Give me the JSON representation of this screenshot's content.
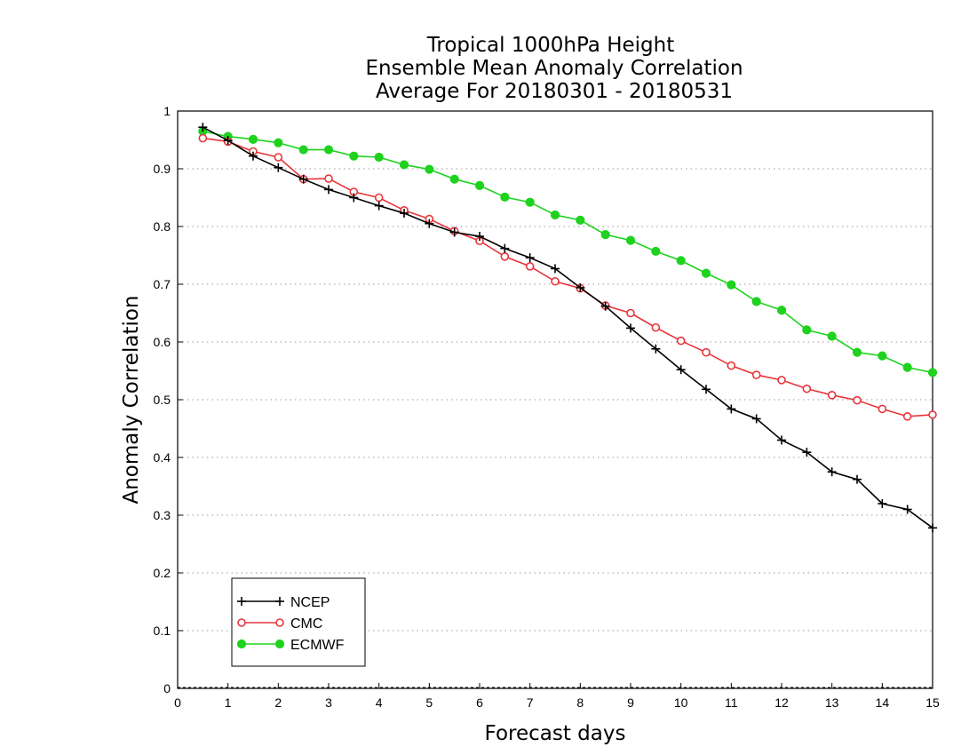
{
  "chart_data": {
    "type": "line",
    "title": [
      "Tropical 1000hPa Height",
      "Ensemble Mean Anomaly Correlation",
      "Average For 20180301 - 20180531"
    ],
    "xlabel": "Forecast days",
    "ylabel": "Anomaly Correlation",
    "xlim": [
      0,
      15
    ],
    "ylim": [
      0,
      1
    ],
    "xticks": [
      "0",
      "1",
      "2",
      "3",
      "4",
      "5",
      "6",
      "7",
      "8",
      "9",
      "10",
      "11",
      "12",
      "13",
      "14",
      "15"
    ],
    "yticks": [
      "0",
      "0.1",
      "0.2",
      "0.3",
      "0.4",
      "0.5",
      "0.6",
      "0.7",
      "0.8",
      "0.9",
      "1"
    ],
    "grid": "horizontal dotted",
    "legend_position": "bottom-left",
    "x": [
      0.5,
      1,
      1.5,
      2,
      2.5,
      3,
      3.5,
      4,
      4.5,
      5,
      5.5,
      6,
      6.5,
      7,
      7.5,
      8,
      8.5,
      9,
      9.5,
      10,
      10.5,
      11,
      11.5,
      12,
      12.5,
      13,
      13.5,
      14,
      14.5,
      15
    ],
    "series": [
      {
        "name": "NCEP",
        "color": "#000000",
        "marker": "plus",
        "values": [
          0.972,
          0.949,
          0.922,
          0.902,
          0.882,
          0.864,
          0.85,
          0.836,
          0.823,
          0.805,
          0.79,
          0.783,
          0.762,
          0.746,
          0.727,
          0.694,
          0.662,
          0.624,
          0.588,
          0.552,
          0.518,
          0.484,
          0.467,
          0.43,
          0.409,
          0.375,
          0.362,
          0.32,
          0.31,
          0.278
        ]
      },
      {
        "name": "CMC",
        "color": "#e8353b",
        "marker": "open-circle",
        "values": [
          0.953,
          0.947,
          0.93,
          0.92,
          0.882,
          0.883,
          0.86,
          0.85,
          0.828,
          0.813,
          0.792,
          0.775,
          0.748,
          0.731,
          0.705,
          0.693,
          0.663,
          0.65,
          0.625,
          0.602,
          0.582,
          0.559,
          0.543,
          0.534,
          0.519,
          0.508,
          0.499,
          0.484,
          0.471,
          0.474
        ]
      },
      {
        "name": "ECMWF",
        "color": "#1ed21e",
        "marker": "filled-circle",
        "values": [
          0.965,
          0.956,
          0.951,
          0.945,
          0.933,
          0.933,
          0.922,
          0.92,
          0.907,
          0.899,
          0.882,
          0.871,
          0.851,
          0.842,
          0.82,
          0.811,
          0.786,
          0.776,
          0.757,
          0.741,
          0.719,
          0.699,
          0.67,
          0.655,
          0.621,
          0.61,
          0.582,
          0.576,
          0.556,
          0.547
        ]
      }
    ]
  }
}
